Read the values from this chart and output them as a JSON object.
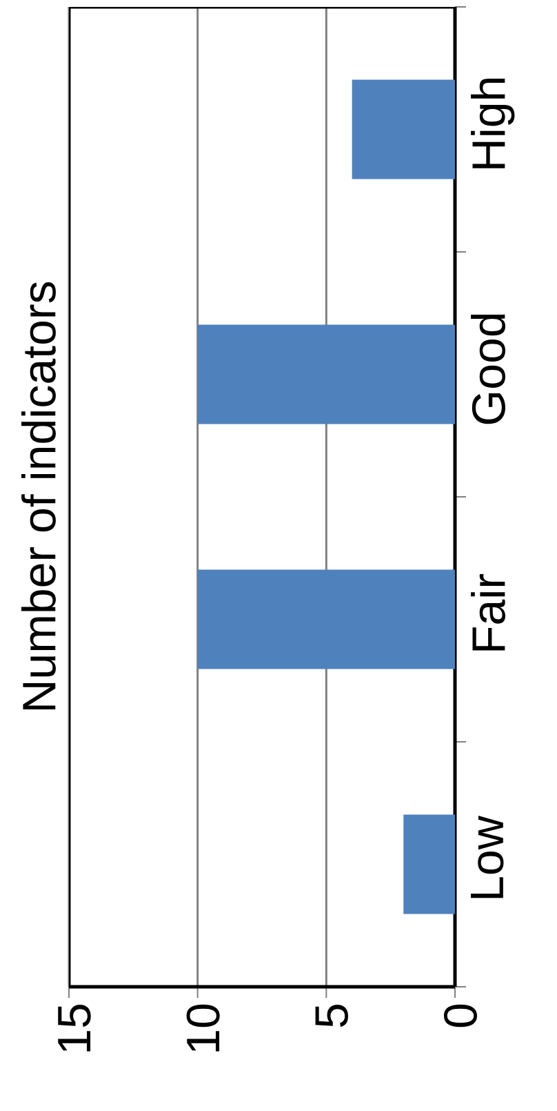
{
  "chart_data": {
    "type": "bar",
    "orientation": "horizontal",
    "title": "Number of indicators",
    "categories": [
      "High",
      "Good",
      "Fair",
      "Low"
    ],
    "values": [
      4,
      10,
      10,
      2
    ],
    "color": "#4f81bd",
    "xlim": [
      15,
      0
    ],
    "xticks": [
      15,
      10,
      5,
      0
    ],
    "grid": "x"
  }
}
